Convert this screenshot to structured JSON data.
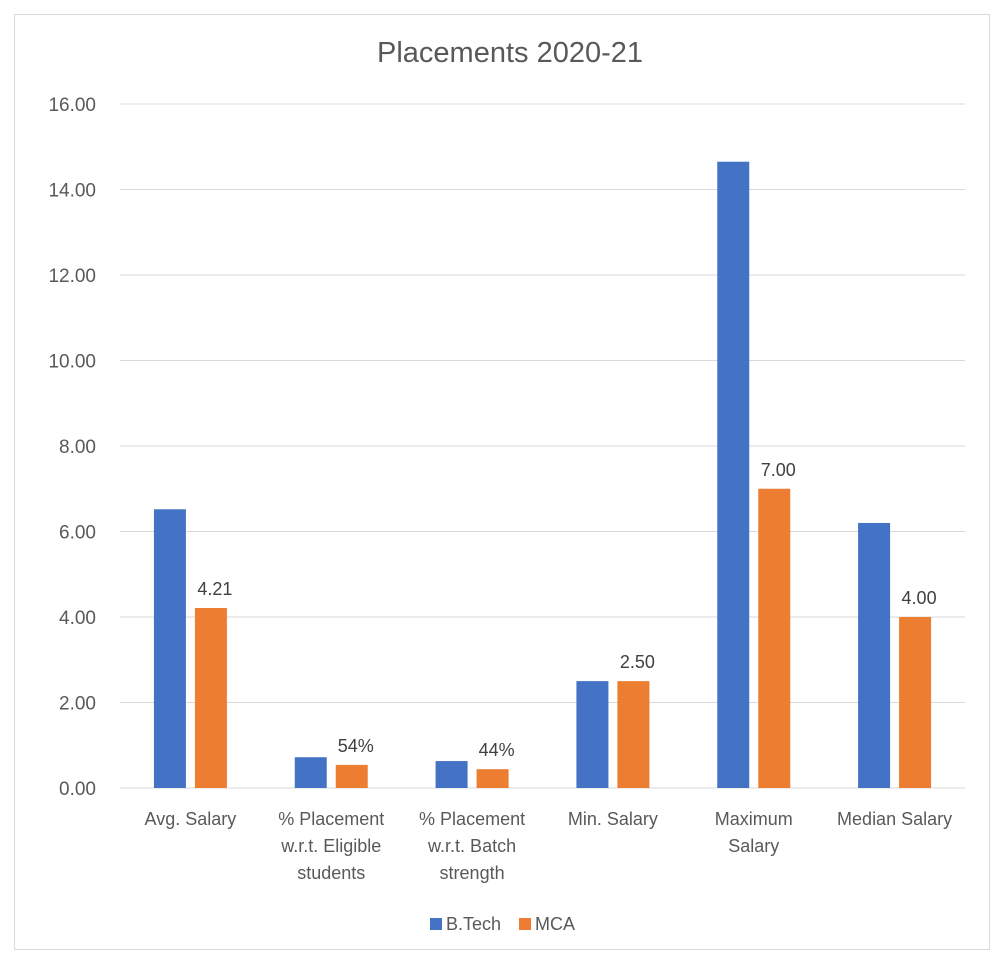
{
  "chart_data": {
    "type": "bar",
    "title": "Placements 2020-21",
    "categories": [
      [
        "Avg. Salary"
      ],
      [
        "% Placement",
        "w.r.t. Eligible",
        "students"
      ],
      [
        "% Placement",
        "w.r.t.  Batch",
        "strength"
      ],
      [
        "Min. Salary"
      ],
      [
        "Maximum",
        "Salary"
      ],
      [
        "Median Salary"
      ]
    ],
    "series": [
      {
        "name": "B.Tech",
        "color": "#4472C4",
        "values": [
          6.52,
          0.72,
          0.63,
          2.5,
          14.65,
          6.2
        ],
        "labels": [
          null,
          null,
          null,
          null,
          null,
          null
        ]
      },
      {
        "name": "MCA",
        "color": "#ED7D31",
        "values": [
          4.21,
          0.54,
          0.44,
          2.5,
          7.0,
          4.0
        ],
        "labels": [
          "4.21",
          "54%",
          "44%",
          "2.50",
          "7.00",
          "4.00"
        ]
      }
    ],
    "ylim": [
      0,
      16
    ],
    "yticks": [
      "0.00",
      "2.00",
      "4.00",
      "6.00",
      "8.00",
      "10.00",
      "12.00",
      "14.00",
      "16.00"
    ],
    "grid": true,
    "legend": "bottom"
  }
}
